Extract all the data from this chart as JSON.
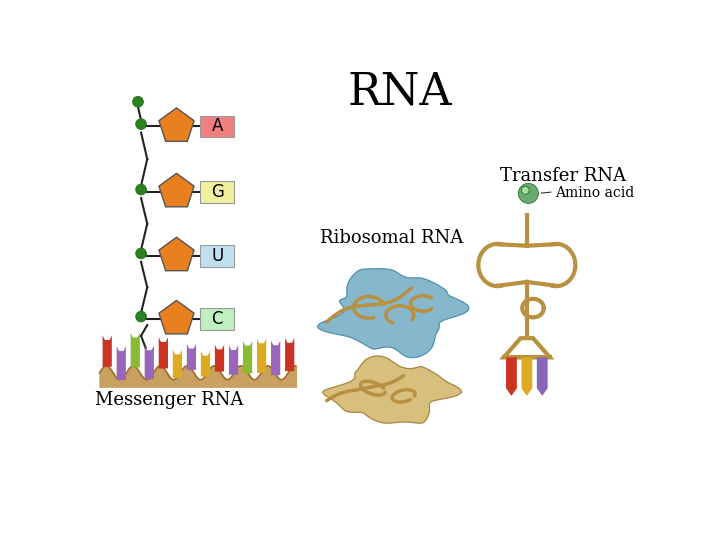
{
  "title": "RNA",
  "title_fontsize": 32,
  "bg_color": "#ffffff",
  "labels": {
    "messenger_rna": "Messenger RNA",
    "ribosomal_rna": "Ribosomal RNA",
    "transfer_rna": "Transfer RNA",
    "amino_acid": "Amino acid"
  },
  "nucleotides": [
    {
      "label": "A",
      "bg": "#f08080"
    },
    {
      "label": "G",
      "bg": "#f0f0a0"
    },
    {
      "label": "U",
      "bg": "#c0e0f0"
    },
    {
      "label": "C",
      "bg": "#c0f0c0"
    }
  ],
  "pentagon_color": "#e88020",
  "dot_color": "#2d8020",
  "strand_color": "#222222",
  "mrna_colors": [
    "#cc3322",
    "#9966bb",
    "#88bb33",
    "#9966bb",
    "#cc3322",
    "#ddaa22",
    "#9966bb",
    "#ddaa22",
    "#cc3322",
    "#9966bb",
    "#88bb33",
    "#ddaa22",
    "#9966bb",
    "#cc3322"
  ],
  "mrna_ground_color": "#c8a060",
  "trna_color": "#b89040",
  "trna_bar_colors": [
    "#cc3322",
    "#ddaa22",
    "#8866bb"
  ],
  "ribo_blue": "#7ab0c8",
  "ribo_tan": "#d4b870",
  "ribbon_color": "#b89040"
}
